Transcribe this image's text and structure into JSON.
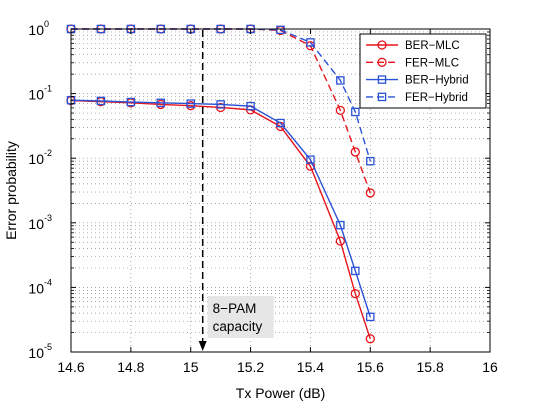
{
  "chart_data": {
    "type": "line",
    "title": "",
    "xlabel": "Tx Power (dB)",
    "ylabel": "Error probability",
    "xlim": [
      14.6,
      16
    ],
    "ylim": [
      1e-05,
      1
    ],
    "yscale": "log",
    "xticks": [
      "14.6",
      "14.8",
      "15",
      "15.2",
      "15.4",
      "15.6",
      "15.8",
      "16"
    ],
    "yticks": [
      {
        "base": "10",
        "exp": "0",
        "value": 1
      },
      {
        "base": "10",
        "exp": "-1",
        "value": 0.1
      },
      {
        "base": "10",
        "exp": "-2",
        "value": 0.01
      },
      {
        "base": "10",
        "exp": "-3",
        "value": 0.001
      },
      {
        "base": "10",
        "exp": "-4",
        "value": 0.0001
      },
      {
        "base": "10",
        "exp": "-5",
        "value": 1e-05
      }
    ],
    "grid": "on",
    "legend_position": "top-right",
    "series": [
      {
        "name": "BER−MLC",
        "color": "#e8141c",
        "style": "solid",
        "marker": "circle",
        "x": [
          14.6,
          14.7,
          14.8,
          14.9,
          15.0,
          15.1,
          15.2,
          15.3,
          15.4,
          15.5,
          15.55,
          15.6
        ],
        "y": [
          0.078,
          0.075,
          0.072,
          0.068,
          0.065,
          0.061,
          0.056,
          0.031,
          0.0075,
          0.00052,
          8e-05,
          1.6e-05
        ]
      },
      {
        "name": "FER−MLC",
        "color": "#e8141c",
        "style": "dashed",
        "marker": "circle",
        "x": [
          14.6,
          14.7,
          14.8,
          14.9,
          15.0,
          15.1,
          15.2,
          15.3,
          15.4,
          15.5,
          15.55,
          15.6
        ],
        "y": [
          1,
          1,
          1,
          1,
          1,
          1,
          1,
          0.95,
          0.55,
          0.055,
          0.0125,
          0.0029
        ]
      },
      {
        "name": "BER−Hybrid",
        "color": "#2a52d6",
        "style": "solid",
        "marker": "square",
        "x": [
          14.6,
          14.7,
          14.8,
          14.9,
          15.0,
          15.1,
          15.2,
          15.3,
          15.4,
          15.5,
          15.55,
          15.6
        ],
        "y": [
          0.079,
          0.077,
          0.074,
          0.072,
          0.07,
          0.068,
          0.064,
          0.035,
          0.0095,
          0.00092,
          0.00018,
          3.5e-05
        ]
      },
      {
        "name": "FER−Hybrid",
        "color": "#2a52d6",
        "style": "dashed",
        "marker": "square",
        "x": [
          14.6,
          14.7,
          14.8,
          14.9,
          15.0,
          15.1,
          15.2,
          15.3,
          15.4,
          15.5,
          15.55,
          15.6
        ],
        "y": [
          1,
          1,
          1,
          1,
          1,
          1,
          1,
          0.97,
          0.62,
          0.16,
          0.052,
          0.009
        ]
      }
    ],
    "annotation": {
      "lines": [
        "8−PAM",
        "capacity"
      ],
      "x": 15.04,
      "arrow": "down"
    }
  }
}
